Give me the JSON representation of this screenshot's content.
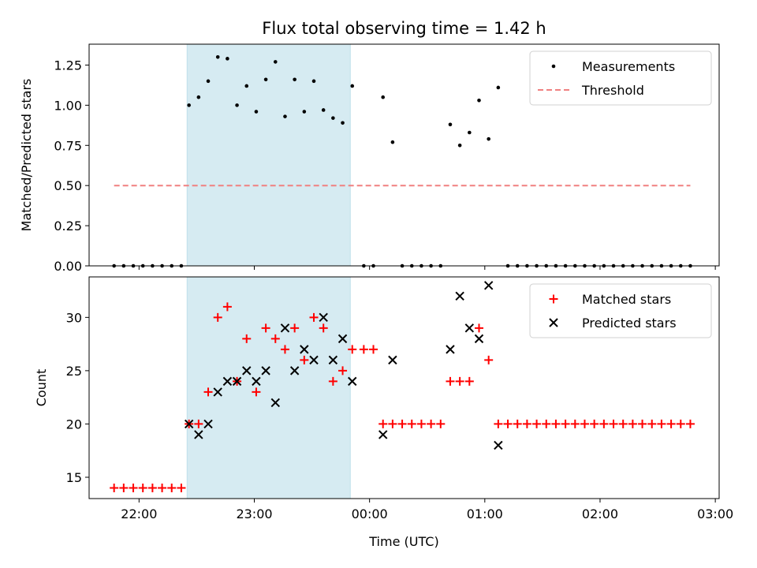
{
  "chart_data": [
    {
      "type": "scatter",
      "title": "Flux total observing time = 1.42 h",
      "xlabel": "",
      "ylabel": "Matched/Predicted stars",
      "xlim": [
        "21:34",
        "03:02"
      ],
      "ylim": [
        0,
        1.38
      ],
      "x_tick_labels": [
        "22:00",
        "23:00",
        "00:00",
        "01:00",
        "02:00",
        "03:00"
      ],
      "y_ticks": [
        0,
        0.25,
        0.5,
        0.75,
        1.0,
        1.25
      ],
      "y_tick_labels": [
        "0.00",
        "0.25",
        "0.50",
        "0.75",
        "1.00",
        "1.25"
      ],
      "shaded_region": {
        "x": [
          "22:25",
          "23:50"
        ],
        "color": "#add8e6"
      },
      "legend": {
        "position": "upper right",
        "entries": [
          "Measurements",
          "Threshold"
        ]
      },
      "threshold": {
        "name": "Threshold",
        "y": 0.5,
        "x": [
          "21:47",
          "02:47"
        ],
        "color": "#f08080"
      },
      "series": [
        {
          "name": "Measurements",
          "color": "#000000",
          "points": [
            [
              "21:47",
              0
            ],
            [
              "21:52",
              0
            ],
            [
              "21:57",
              0
            ],
            [
              "22:02",
              0
            ],
            [
              "22:07",
              0
            ],
            [
              "22:12",
              0
            ],
            [
              "22:17",
              0
            ],
            [
              "22:22",
              0
            ],
            [
              "22:26",
              1.0
            ],
            [
              "22:31",
              1.05
            ],
            [
              "22:36",
              1.15
            ],
            [
              "22:41",
              1.3
            ],
            [
              "22:46",
              1.29
            ],
            [
              "22:51",
              1.0
            ],
            [
              "22:56",
              1.12
            ],
            [
              "23:01",
              0.96
            ],
            [
              "23:06",
              1.16
            ],
            [
              "23:11",
              1.27
            ],
            [
              "23:16",
              0.93
            ],
            [
              "23:21",
              1.16
            ],
            [
              "23:26",
              0.96
            ],
            [
              "23:31",
              1.15
            ],
            [
              "23:36",
              0.97
            ],
            [
              "23:41",
              0.92
            ],
            [
              "23:46",
              0.89
            ],
            [
              "23:51",
              1.12
            ],
            [
              "23:57",
              0
            ],
            [
              "00:02",
              0
            ],
            [
              "00:07",
              1.05
            ],
            [
              "00:12",
              0.77
            ],
            [
              "00:17",
              0
            ],
            [
              "00:22",
              0
            ],
            [
              "00:27",
              0
            ],
            [
              "00:32",
              0
            ],
            [
              "00:37",
              0
            ],
            [
              "00:42",
              0.88
            ],
            [
              "00:47",
              0.75
            ],
            [
              "00:52",
              0.83
            ],
            [
              "00:57",
              1.03
            ],
            [
              "01:02",
              0.79
            ],
            [
              "01:07",
              1.11
            ],
            [
              "01:12",
              0
            ],
            [
              "01:17",
              0
            ],
            [
              "01:22",
              0
            ],
            [
              "01:27",
              0
            ],
            [
              "01:32",
              0
            ],
            [
              "01:37",
              0
            ],
            [
              "01:42",
              0
            ],
            [
              "01:47",
              0
            ],
            [
              "01:52",
              0
            ],
            [
              "01:57",
              0
            ],
            [
              "02:02",
              0
            ],
            [
              "02:07",
              0
            ],
            [
              "02:12",
              0
            ],
            [
              "02:17",
              0
            ],
            [
              "02:22",
              0
            ],
            [
              "02:27",
              0
            ],
            [
              "02:32",
              0
            ],
            [
              "02:37",
              0
            ],
            [
              "02:42",
              0
            ],
            [
              "02:47",
              0
            ]
          ]
        }
      ]
    },
    {
      "type": "scatter",
      "title": "",
      "xlabel": "Time (UTC)",
      "ylabel": "Count",
      "xlim": [
        "21:34",
        "03:02"
      ],
      "ylim": [
        13,
        33.8
      ],
      "x_tick_labels": [
        "22:00",
        "23:00",
        "00:00",
        "01:00",
        "02:00",
        "03:00"
      ],
      "y_ticks": [
        15,
        20,
        25,
        30
      ],
      "y_tick_labels": [
        "15",
        "20",
        "25",
        "30"
      ],
      "shaded_region": {
        "x": [
          "22:25",
          "23:50"
        ],
        "color": "#add8e6"
      },
      "legend": {
        "position": "upper right",
        "entries": [
          "Matched stars",
          "Predicted stars"
        ]
      },
      "series": [
        {
          "name": "Matched stars",
          "marker": "plus",
          "color": "#ff0000",
          "points": [
            [
              "21:47",
              14
            ],
            [
              "21:52",
              14
            ],
            [
              "21:57",
              14
            ],
            [
              "22:02",
              14
            ],
            [
              "22:07",
              14
            ],
            [
              "22:12",
              14
            ],
            [
              "22:17",
              14
            ],
            [
              "22:22",
              14
            ],
            [
              "22:26",
              20
            ],
            [
              "22:31",
              20
            ],
            [
              "22:36",
              23
            ],
            [
              "22:41",
              30
            ],
            [
              "22:46",
              31
            ],
            [
              "22:51",
              24
            ],
            [
              "22:56",
              28
            ],
            [
              "23:01",
              23
            ],
            [
              "23:06",
              29
            ],
            [
              "23:11",
              28
            ],
            [
              "23:16",
              27
            ],
            [
              "23:21",
              29
            ],
            [
              "23:26",
              26
            ],
            [
              "23:31",
              30
            ],
            [
              "23:36",
              29
            ],
            [
              "23:41",
              24
            ],
            [
              "23:46",
              25
            ],
            [
              "23:51",
              27
            ],
            [
              "23:57",
              27
            ],
            [
              "00:02",
              27
            ],
            [
              "00:07",
              20
            ],
            [
              "00:12",
              20
            ],
            [
              "00:17",
              20
            ],
            [
              "00:22",
              20
            ],
            [
              "00:27",
              20
            ],
            [
              "00:32",
              20
            ],
            [
              "00:37",
              20
            ],
            [
              "00:42",
              24
            ],
            [
              "00:47",
              24
            ],
            [
              "00:52",
              24
            ],
            [
              "00:57",
              29
            ],
            [
              "01:02",
              26
            ],
            [
              "01:07",
              20
            ],
            [
              "01:12",
              20
            ],
            [
              "01:17",
              20
            ],
            [
              "01:22",
              20
            ],
            [
              "01:27",
              20
            ],
            [
              "01:32",
              20
            ],
            [
              "01:37",
              20
            ],
            [
              "01:42",
              20
            ],
            [
              "01:47",
              20
            ],
            [
              "01:52",
              20
            ],
            [
              "01:57",
              20
            ],
            [
              "02:02",
              20
            ],
            [
              "02:07",
              20
            ],
            [
              "02:12",
              20
            ],
            [
              "02:17",
              20
            ],
            [
              "02:22",
              20
            ],
            [
              "02:27",
              20
            ],
            [
              "02:32",
              20
            ],
            [
              "02:37",
              20
            ],
            [
              "02:42",
              20
            ],
            [
              "02:47",
              20
            ]
          ]
        },
        {
          "name": "Predicted stars",
          "marker": "x",
          "color": "#000000",
          "points": [
            [
              "22:26",
              20
            ],
            [
              "22:31",
              19
            ],
            [
              "22:36",
              20
            ],
            [
              "22:41",
              23
            ],
            [
              "22:46",
              24
            ],
            [
              "22:51",
              24
            ],
            [
              "22:56",
              25
            ],
            [
              "23:01",
              24
            ],
            [
              "23:06",
              25
            ],
            [
              "23:11",
              22
            ],
            [
              "23:16",
              29
            ],
            [
              "23:21",
              25
            ],
            [
              "23:26",
              27
            ],
            [
              "23:31",
              26
            ],
            [
              "23:36",
              30
            ],
            [
              "23:41",
              26
            ],
            [
              "23:46",
              28
            ],
            [
              "23:51",
              24
            ],
            [
              "00:07",
              19
            ],
            [
              "00:12",
              26
            ],
            [
              "00:42",
              27
            ],
            [
              "00:47",
              32
            ],
            [
              "00:52",
              29
            ],
            [
              "00:57",
              28
            ],
            [
              "01:02",
              33
            ],
            [
              "01:07",
              18
            ]
          ]
        }
      ]
    }
  ]
}
